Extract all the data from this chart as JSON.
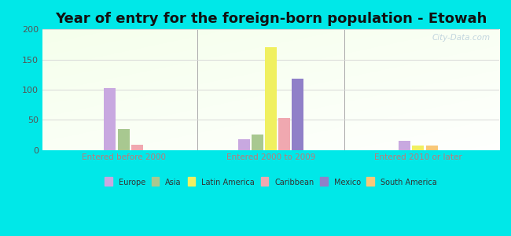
{
  "title": "Year of entry for the foreign-born population - Etowah",
  "groups": [
    "Entered before 2000",
    "Entered 2000 to 2009",
    "Entered 2010 or later"
  ],
  "categories": [
    "Europe",
    "Asia",
    "Latin America",
    "Caribbean",
    "Mexico",
    "South America"
  ],
  "colors": [
    "#c8a8e0",
    "#a8c890",
    "#f0f060",
    "#f0a8b0",
    "#9080c8",
    "#f8c878"
  ],
  "group_data": [
    [
      103,
      35,
      0,
      9,
      0,
      0
    ],
    [
      18,
      26,
      170,
      53,
      118,
      0
    ],
    [
      16,
      0,
      8,
      0,
      0,
      7
    ]
  ],
  "ylim": [
    0,
    200
  ],
  "yticks": [
    0,
    50,
    100,
    150,
    200
  ],
  "background_color": "#00e8e8",
  "title_fontsize": 13,
  "axis_label_color": "#c07878",
  "grid_color": "#d8d8d8",
  "watermark": "City-Data.com"
}
